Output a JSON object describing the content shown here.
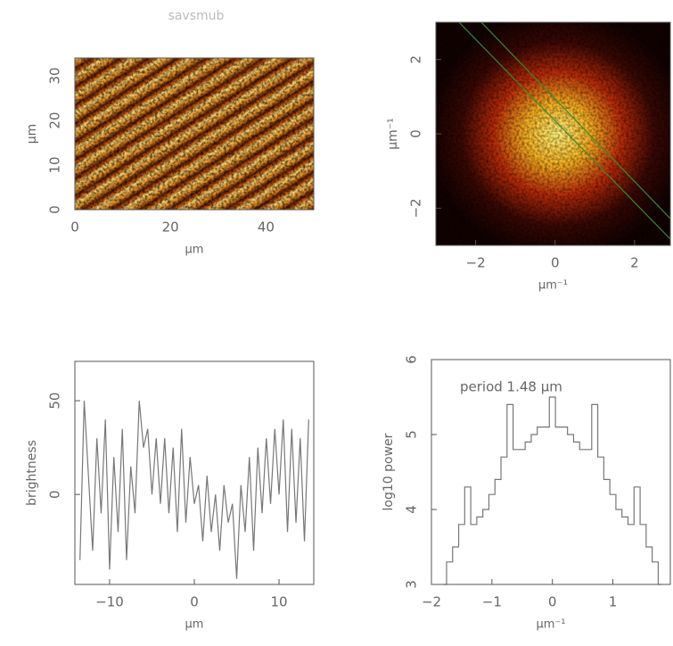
{
  "chart_data": [
    {
      "type": "image",
      "title": "savsmub",
      "x_label": "μm",
      "y_label": "μm",
      "xlim": [
        0,
        50
      ],
      "ylim": [
        0,
        34
      ],
      "xticks": [
        0,
        20,
        40
      ],
      "yticks": [
        0,
        10,
        20,
        30
      ]
    },
    {
      "type": "image",
      "x_label": "μm⁻¹",
      "y_label": "μm⁻¹",
      "xlim": [
        -3,
        2.9
      ],
      "ylim": [
        -3,
        3
      ],
      "xticks": [
        {
          "value": -2,
          "label": "−2"
        },
        0,
        2
      ],
      "yticks": [
        {
          "value": -2,
          "label": "−2"
        },
        0,
        2
      ]
    },
    {
      "type": "line",
      "x_label": "μm",
      "y_label": "brightness",
      "color": "#777",
      "step": false,
      "xlim": [
        -14.1,
        14.1
      ],
      "ylim": [
        -48,
        71
      ],
      "xticks": [
        {
          "value": -10,
          "label": "−10"
        },
        0,
        10
      ],
      "yticks": [
        0,
        50
      ],
      "x": [
        -13.5,
        -13,
        -12.5,
        -12,
        -11.5,
        -11,
        -10.5,
        -10,
        -9.5,
        -9,
        -8.5,
        -8,
        -7.5,
        -7,
        -6.5,
        -6,
        -5.5,
        -5,
        -4.5,
        -4,
        -3.5,
        -3,
        -2.5,
        -2,
        -1.5,
        -1,
        -0.5,
        0,
        0.5,
        1,
        1.5,
        2,
        2.5,
        3,
        3.5,
        4,
        4.5,
        5,
        5.5,
        6,
        6.5,
        7,
        7.5,
        8,
        8.5,
        9,
        9.5,
        10,
        10.5,
        11,
        11.5,
        12,
        12.5,
        13,
        13.5
      ],
      "values": [
        -35,
        50,
        10,
        -30,
        30,
        -10,
        40,
        -40,
        20,
        -20,
        35,
        -35,
        15,
        -10,
        50,
        25,
        35,
        0,
        30,
        -5,
        30,
        -10,
        25,
        -20,
        35,
        -15,
        20,
        -5,
        5,
        -25,
        10,
        -20,
        0,
        -30,
        5,
        -15,
        -5,
        -45,
        5,
        -20,
        20,
        -30,
        25,
        -10,
        30,
        -5,
        35,
        0,
        40,
        -20,
        35,
        -15,
        30,
        -25,
        40
      ]
    },
    {
      "type": "line",
      "x_label": "μm⁻¹",
      "y_label": "log10 power",
      "color": "#777",
      "step": true,
      "annotation": "period 1.48 μm",
      "xlim": [
        -2,
        1.95
      ],
      "ylim": [
        3,
        6
      ],
      "xticks": [
        {
          "value": -2,
          "label": "−2"
        },
        {
          "value": -1,
          "label": "−1"
        },
        0,
        1
      ],
      "yticks": [
        3,
        4,
        5,
        6
      ],
      "x": [
        -1.8,
        -1.7,
        -1.6,
        -1.5,
        -1.4,
        -1.3,
        -1.2,
        -1.1,
        -1.0,
        -0.9,
        -0.8,
        -0.7,
        -0.6,
        -0.5,
        -0.4,
        -0.3,
        -0.2,
        -0.1,
        0,
        0.1,
        0.2,
        0.3,
        0.4,
        0.5,
        0.6,
        0.7,
        0.8,
        0.9,
        1.0,
        1.1,
        1.2,
        1.3,
        1.4,
        1.5,
        1.6,
        1.7,
        1.8
      ],
      "values": [
        3.0,
        3.3,
        3.5,
        3.8,
        4.3,
        3.8,
        3.9,
        4.0,
        4.2,
        4.4,
        4.7,
        5.4,
        4.8,
        4.8,
        4.9,
        5.0,
        5.1,
        5.1,
        5.5,
        5.1,
        5.1,
        5.0,
        4.9,
        4.8,
        4.8,
        5.4,
        4.7,
        4.4,
        4.2,
        4.0,
        3.9,
        3.8,
        4.3,
        3.8,
        3.5,
        3.3,
        3.0
      ]
    }
  ]
}
